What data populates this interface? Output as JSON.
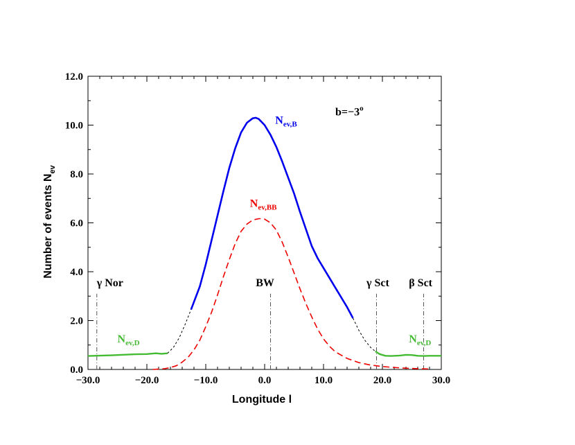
{
  "chart_data": {
    "type": "line",
    "xlabel": "Longitude l",
    "ylabel_main": "Number of events N",
    "ylabel_sub": "ev",
    "xlim": [
      -30,
      30
    ],
    "ylim": [
      0,
      12
    ],
    "x_ticks": [
      -30,
      -20,
      -10,
      0,
      10,
      20,
      30
    ],
    "x_tick_labels": [
      "−30.0",
      "−20.0",
      "−10.0",
      "0.0",
      "10.0",
      "20.0",
      "30.0"
    ],
    "y_ticks": [
      0,
      2,
      4,
      6,
      8,
      10,
      12
    ],
    "y_tick_labels": [
      "0.0",
      "2.0",
      "4.0",
      "6.0",
      "8.0",
      "10.0",
      "12.0"
    ],
    "grid": false,
    "series": [
      {
        "name_main": "N",
        "name_sub": "ev,B",
        "color": "#0000ee",
        "style": "solid",
        "x": [
          -12.5,
          -11,
          -10,
          -9,
          -8,
          -7,
          -6,
          -5,
          -4,
          -3,
          -2,
          -1.5,
          -1,
          0,
          1,
          2,
          3,
          4,
          5,
          6,
          7,
          8,
          9,
          10,
          11,
          12,
          13,
          14,
          15
        ],
        "y": [
          2.45,
          3.4,
          4.3,
          5.3,
          6.3,
          7.3,
          8.25,
          9.05,
          9.7,
          10.1,
          10.28,
          10.3,
          10.25,
          10.0,
          9.6,
          9.1,
          8.5,
          7.85,
          7.2,
          6.45,
          5.75,
          5.05,
          4.55,
          4.15,
          3.75,
          3.35,
          2.95,
          2.55,
          2.1
        ]
      },
      {
        "name_main": "N",
        "name_sub": "ev,BB",
        "color": "#ee0000",
        "style": "dashed",
        "x": [
          -19,
          -17,
          -16,
          -15,
          -14,
          -13,
          -12,
          -11,
          -10,
          -9,
          -8,
          -7,
          -6,
          -5,
          -4,
          -3,
          -2,
          -1,
          -0.5,
          0,
          1,
          2,
          3,
          4,
          5,
          6,
          7,
          8,
          9,
          10,
          11,
          12,
          14,
          16,
          18,
          20,
          22,
          24,
          26,
          28
        ],
        "y": [
          0.0,
          0.03,
          0.08,
          0.15,
          0.3,
          0.5,
          0.8,
          1.2,
          1.75,
          2.35,
          3.05,
          3.8,
          4.5,
          5.15,
          5.65,
          5.95,
          6.12,
          6.17,
          6.17,
          6.15,
          6.0,
          5.7,
          5.2,
          4.6,
          3.95,
          3.3,
          2.7,
          2.15,
          1.65,
          1.25,
          0.95,
          0.72,
          0.45,
          0.28,
          0.18,
          0.12,
          0.08,
          0.05,
          0.03,
          0.02
        ]
      },
      {
        "name_main": "N",
        "name_sub": "ev,D",
        "color": "#44bb33",
        "style": "solid",
        "segment": "left",
        "x": [
          -30,
          -26,
          -22,
          -20,
          -18.5,
          -17.5,
          -16.5
        ],
        "y": [
          0.55,
          0.58,
          0.62,
          0.63,
          0.66,
          0.64,
          0.66
        ]
      },
      {
        "name_main": "N",
        "name_sub": "ev,D",
        "color": "#44bb33",
        "style": "solid",
        "segment": "right",
        "x": [
          18.8,
          19.5,
          20.5,
          21.5,
          23,
          24,
          25,
          26,
          27,
          28,
          30
        ],
        "y": [
          0.74,
          0.63,
          0.56,
          0.55,
          0.57,
          0.6,
          0.59,
          0.56,
          0.55,
          0.56,
          0.56
        ]
      },
      {
        "name_main": "",
        "name_sub": "",
        "color": "#000000",
        "style": "dashed",
        "segment": "connector-left",
        "x": [
          -16.5,
          -15.5,
          -14.5,
          -13.5,
          -12.5
        ],
        "y": [
          0.66,
          0.9,
          1.3,
          1.85,
          2.45
        ]
      },
      {
        "name_main": "",
        "name_sub": "",
        "color": "#000000",
        "style": "dashed",
        "segment": "connector-right",
        "x": [
          15,
          16,
          17,
          18,
          18.8
        ],
        "y": [
          2.1,
          1.6,
          1.2,
          0.9,
          0.74
        ]
      }
    ],
    "annotations": [
      {
        "main": "b=−3",
        "sup": "o",
        "x": 12,
        "y": 10.4,
        "color": "#000000"
      },
      {
        "main": "N",
        "sub": "ev,B",
        "x": 1.8,
        "y": 10.05,
        "color": "#0000ee"
      },
      {
        "main": "N",
        "sub": "ev,BB",
        "x": -2.5,
        "y": 6.65,
        "color": "#ee0000"
      },
      {
        "main": "N",
        "sub": "ev,D",
        "x": -25,
        "y": 1.1,
        "color": "#44bb33"
      },
      {
        "main": "N",
        "sub": "ev,D",
        "x": 24.5,
        "y": 1.1,
        "color": "#44bb33"
      },
      {
        "main": "γ Nor",
        "x": -28.5,
        "y": 3.4,
        "color": "#000000"
      },
      {
        "main": "BW",
        "x": -1.5,
        "y": 3.4,
        "color": "#000000"
      },
      {
        "main": "γ Sct",
        "x": 17.3,
        "y": 3.4,
        "color": "#000000"
      },
      {
        "main": "β Sct",
        "x": 24.5,
        "y": 3.4,
        "color": "#000000"
      }
    ],
    "reference_lines": [
      {
        "x": -28.5,
        "y_top": 3.1
      },
      {
        "x": 1,
        "y_top": 3.1
      },
      {
        "x": 19,
        "y_top": 3.1
      },
      {
        "x": 27,
        "y_top": 3.1
      }
    ]
  }
}
